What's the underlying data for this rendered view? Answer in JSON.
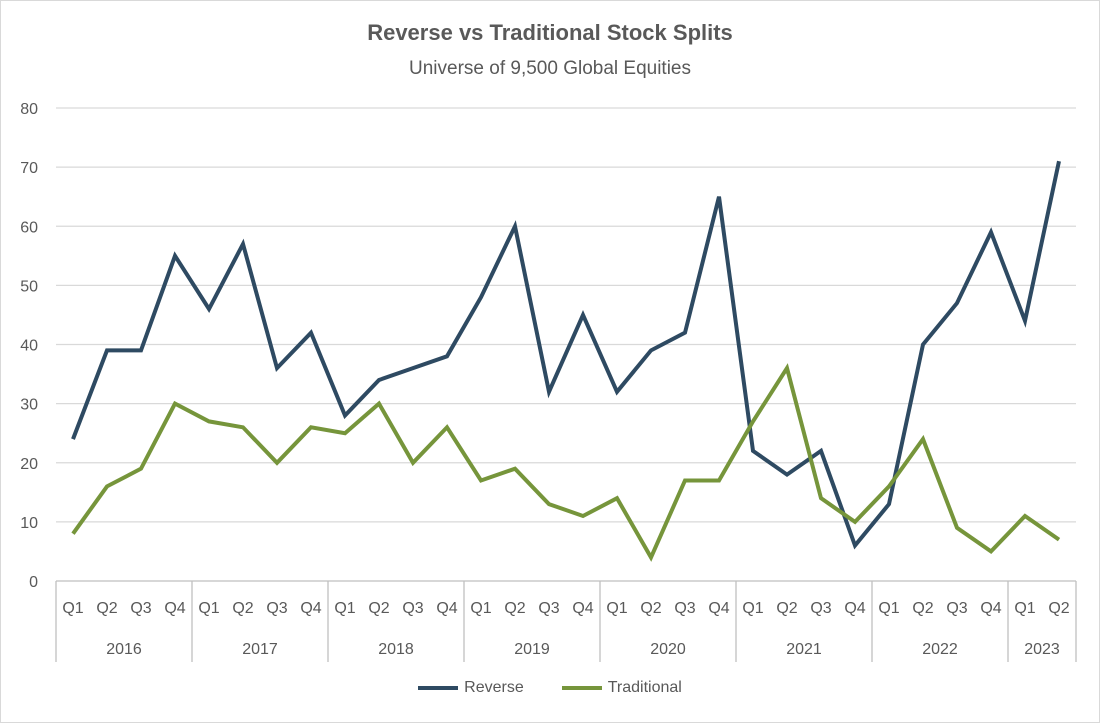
{
  "chart_data": {
    "type": "line",
    "title": "Reverse vs Traditional Stock Splits",
    "subtitle": "Universe of 9,500 Global Equities",
    "xlabel": "",
    "ylabel": "",
    "ylim": [
      0,
      80
    ],
    "yticks": [
      0,
      10,
      20,
      30,
      40,
      50,
      60,
      70,
      80
    ],
    "grid": true,
    "legend_position": "bottom",
    "categories": [
      "Q1",
      "Q2",
      "Q3",
      "Q4",
      "Q1",
      "Q2",
      "Q3",
      "Q4",
      "Q1",
      "Q2",
      "Q3",
      "Q4",
      "Q1",
      "Q2",
      "Q3",
      "Q4",
      "Q1",
      "Q2",
      "Q3",
      "Q4",
      "Q1",
      "Q2",
      "Q3",
      "Q4",
      "Q1",
      "Q2",
      "Q3",
      "Q4",
      "Q1",
      "Q2"
    ],
    "years": [
      {
        "label": "2016",
        "count": 4
      },
      {
        "label": "2017",
        "count": 4
      },
      {
        "label": "2018",
        "count": 4
      },
      {
        "label": "2019",
        "count": 4
      },
      {
        "label": "2020",
        "count": 4
      },
      {
        "label": "2021",
        "count": 4
      },
      {
        "label": "2022",
        "count": 4
      },
      {
        "label": "2023",
        "count": 2
      }
    ],
    "series": [
      {
        "name": "Reverse",
        "color": "#2e4a62",
        "values": [
          24,
          39,
          39,
          55,
          46,
          57,
          36,
          42,
          28,
          34,
          36,
          38,
          48,
          60,
          32,
          45,
          32,
          39,
          42,
          65,
          22,
          18,
          22,
          6,
          13,
          40,
          47,
          59,
          44,
          71
        ]
      },
      {
        "name": "Traditional",
        "color": "#76953b",
        "values": [
          8,
          16,
          19,
          30,
          27,
          26,
          20,
          26,
          25,
          30,
          20,
          26,
          17,
          19,
          13,
          11,
          14,
          4,
          17,
          17,
          27,
          36,
          14,
          10,
          16,
          24,
          9,
          5,
          11,
          7
        ]
      }
    ]
  }
}
